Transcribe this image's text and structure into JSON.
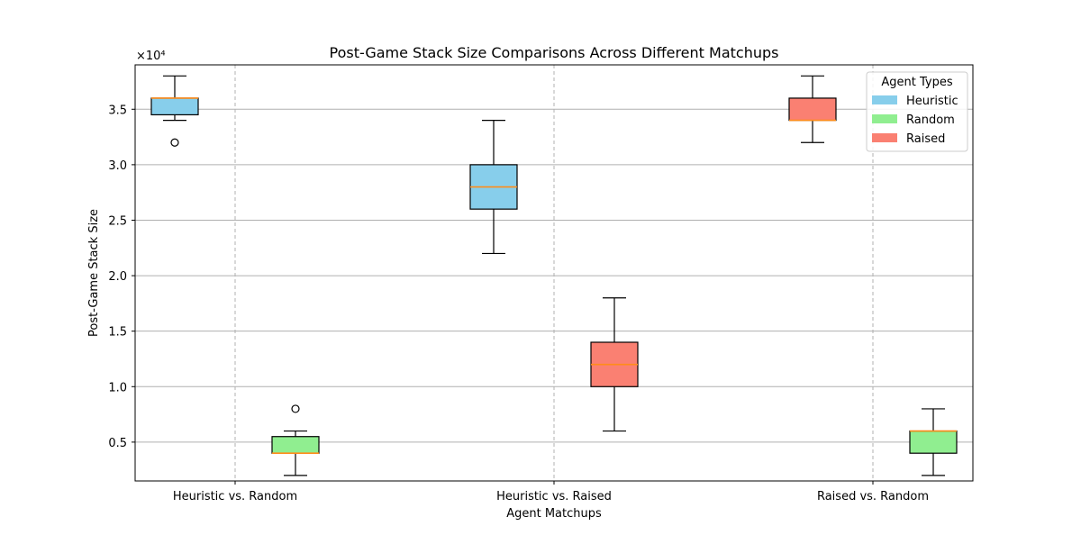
{
  "chart_data": {
    "type": "box",
    "title": "Post-Game Stack Size Comparisons Across Different Matchups",
    "xlabel": "Agent Matchups",
    "ylabel": "Post-Game Stack Size",
    "y_offset_text": "×10⁴",
    "ylim": [
      1500,
      39000
    ],
    "yticks": [
      5000,
      10000,
      15000,
      20000,
      25000,
      30000,
      35000
    ],
    "ytick_labels": [
      "0.5",
      "1.0",
      "1.5",
      "2.0",
      "2.5",
      "3.0",
      "3.5"
    ],
    "categories": [
      "Heuristic vs. Random",
      "Heuristic vs. Raised",
      "Raised vs. Random"
    ],
    "grid": {
      "horizontal": "solid",
      "vertical": "dashed"
    },
    "legend": {
      "title": "Agent Types",
      "placement": "top-right",
      "entries": [
        {
          "label": "Heuristic",
          "color": "#87ceeb"
        },
        {
          "label": "Random",
          "color": "#90ee90"
        },
        {
          "label": "Raised",
          "color": "#fa8072"
        }
      ]
    },
    "median_color": "#ff8c1a",
    "boxes": [
      {
        "category": "Heuristic vs. Random",
        "agent": "Heuristic",
        "color": "#87ceeb",
        "offset": "left",
        "whisker_low": 34000,
        "q1": 34500,
        "median": 36000,
        "q3": 36000,
        "whisker_high": 38000,
        "outliers": [
          32000
        ]
      },
      {
        "category": "Heuristic vs. Random",
        "agent": "Random",
        "color": "#90ee90",
        "offset": "right",
        "whisker_low": 2000,
        "q1": 4000,
        "median": 4000,
        "q3": 5500,
        "whisker_high": 6000,
        "outliers": [
          8000
        ]
      },
      {
        "category": "Heuristic vs. Raised",
        "agent": "Heuristic",
        "color": "#87ceeb",
        "offset": "left",
        "whisker_low": 22000,
        "q1": 26000,
        "median": 28000,
        "q3": 30000,
        "whisker_high": 34000,
        "outliers": []
      },
      {
        "category": "Heuristic vs. Raised",
        "agent": "Raised",
        "color": "#fa8072",
        "offset": "right",
        "whisker_low": 6000,
        "q1": 10000,
        "median": 12000,
        "q3": 14000,
        "whisker_high": 18000,
        "outliers": []
      },
      {
        "category": "Raised vs. Random",
        "agent": "Raised",
        "color": "#fa8072",
        "offset": "left",
        "whisker_low": 32000,
        "q1": 34000,
        "median": 34000,
        "q3": 36000,
        "whisker_high": 38000,
        "outliers": []
      },
      {
        "category": "Raised vs. Random",
        "agent": "Random",
        "color": "#90ee90",
        "offset": "right",
        "whisker_low": 2000,
        "q1": 4000,
        "median": 6000,
        "q3": 6000,
        "whisker_high": 8000,
        "outliers": []
      }
    ]
  }
}
